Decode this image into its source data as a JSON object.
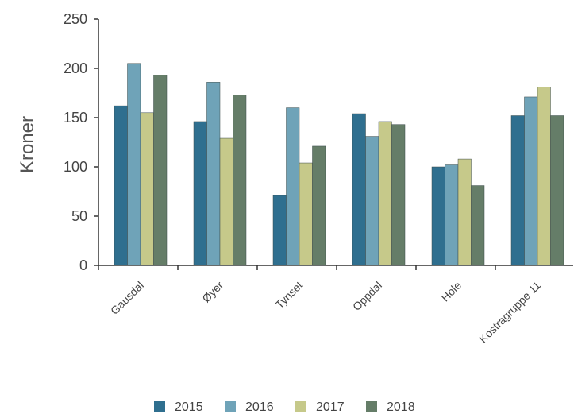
{
  "chart_data": {
    "type": "bar",
    "ylabel": "Kroner",
    "xlabel": "",
    "title": "",
    "ylim": [
      0,
      250
    ],
    "yticks": [
      0,
      50,
      100,
      150,
      200,
      250
    ],
    "grid": false,
    "legend_position": "bottom",
    "categories": [
      "Gausdal",
      "Øyer",
      "Tynset",
      "Oppdal",
      "Hole",
      "Kostragruppe 11"
    ],
    "series": [
      {
        "name": "2015",
        "color": "#2f6f8f",
        "values": [
          162,
          146,
          71,
          154,
          100,
          152
        ]
      },
      {
        "name": "2016",
        "color": "#6fa3b8",
        "values": [
          205,
          186,
          160,
          131,
          102,
          171
        ]
      },
      {
        "name": "2017",
        "color": "#c6c98a",
        "values": [
          155,
          129,
          104,
          146,
          108,
          181
        ]
      },
      {
        "name": "2018",
        "color": "#657d68",
        "values": [
          193,
          173,
          121,
          143,
          81,
          152
        ]
      }
    ]
  }
}
